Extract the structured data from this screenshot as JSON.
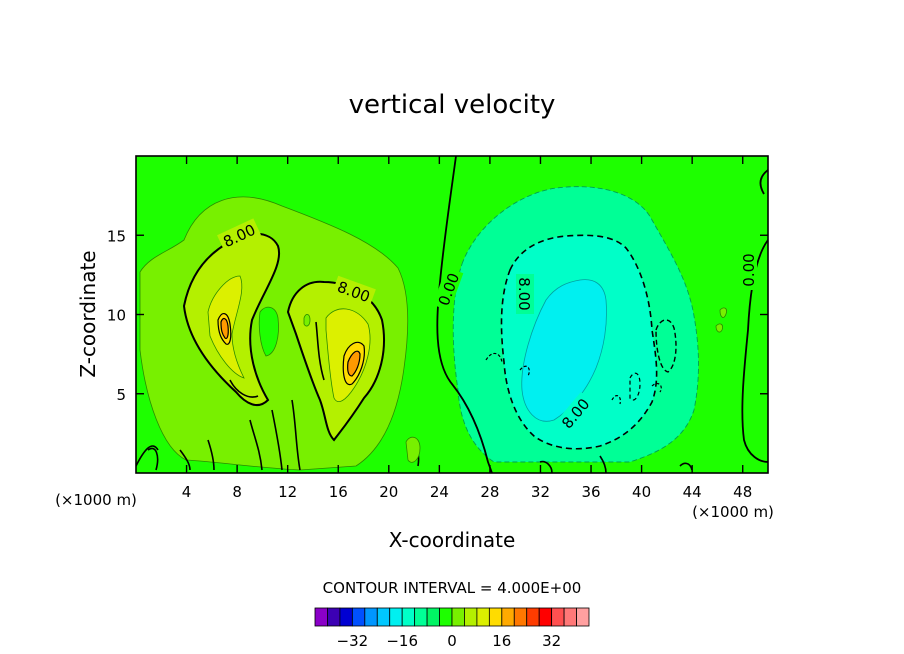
{
  "chart_data": {
    "type": "heatmap",
    "title": "vertical velocity",
    "xlabel": "X-coordinate",
    "ylabel": "Z-coordinate",
    "x_unit": "(×1000 m)",
    "y_unit": "(×1000 m)",
    "xlim": [
      0,
      50
    ],
    "ylim": [
      0,
      20
    ],
    "x_ticks": [
      4,
      8,
      12,
      16,
      20,
      24,
      28,
      32,
      36,
      40,
      44,
      48
    ],
    "y_ticks": [
      5,
      10,
      15
    ],
    "x_tick_labels": [
      "4",
      "8",
      "12",
      "16",
      "20",
      "24",
      "28",
      "32",
      "36",
      "40",
      "44",
      "48"
    ],
    "y_tick_labels": [
      "5",
      "10",
      "15"
    ],
    "contour_interval_text": "CONTOUR INTERVAL = 4.000E+00",
    "contour_interval": 4.0,
    "contour_labels": [
      {
        "text": "8.00",
        "x": 9.5,
        "z": 14.6,
        "angle": -25
      },
      {
        "text": "8.00",
        "x": 17.2,
        "z": 11.4,
        "angle": 20
      },
      {
        "text": "0.00",
        "x": 25.0,
        "z": 11.5,
        "angle": -70
      },
      {
        "text": "8.00",
        "x": 30.5,
        "z": 11.3,
        "angle": 90
      },
      {
        "text": "8.00",
        "x": 34.2,
        "z": 3.3,
        "angle": -50
      },
      {
        "text": "0.00",
        "x": 48.5,
        "z": 12.8,
        "angle": -90
      }
    ],
    "colorbar": {
      "tick_labels": [
        "-32",
        "-16",
        "0",
        "16",
        "32"
      ],
      "tick_values": [
        -32,
        -16,
        0,
        16,
        32
      ],
      "colors": [
        "#8a00c8",
        "#3c00b4",
        "#0000d2",
        "#0050ff",
        "#0096ff",
        "#00c8ff",
        "#00f0f0",
        "#00ffc8",
        "#00ff96",
        "#00f564",
        "#1eff00",
        "#78f000",
        "#b4f000",
        "#dcf000",
        "#ffdc00",
        "#ffaa00",
        "#ff7800",
        "#ff3c00",
        "#ff0000",
        "#ff5050",
        "#ff7878",
        "#ffa0a0"
      ]
    },
    "fields": [
      {
        "name": "positive updraft core left",
        "x": 7.5,
        "z": 9.5,
        "max": 20
      },
      {
        "name": "positive updraft core right",
        "x": 17.0,
        "z": 8.0,
        "max": 20
      },
      {
        "name": "negative downdraft core",
        "x": 34.0,
        "z": 9.5,
        "min": -8
      }
    ]
  }
}
